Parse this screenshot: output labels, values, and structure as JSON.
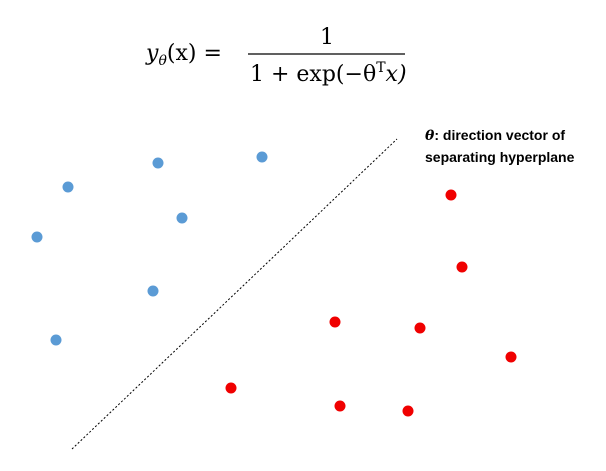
{
  "formula": {
    "lhs_main": "y",
    "lhs_sub": "θ",
    "lhs_rest": "(x) =",
    "numerator": "1",
    "denom_pre": "1 + exp(−θ",
    "denom_sup": "T",
    "denom_post": "x)"
  },
  "annotation": {
    "symbol": "θ",
    "line1": ": direction vector of",
    "line2": "separating hyperplane"
  }
}
